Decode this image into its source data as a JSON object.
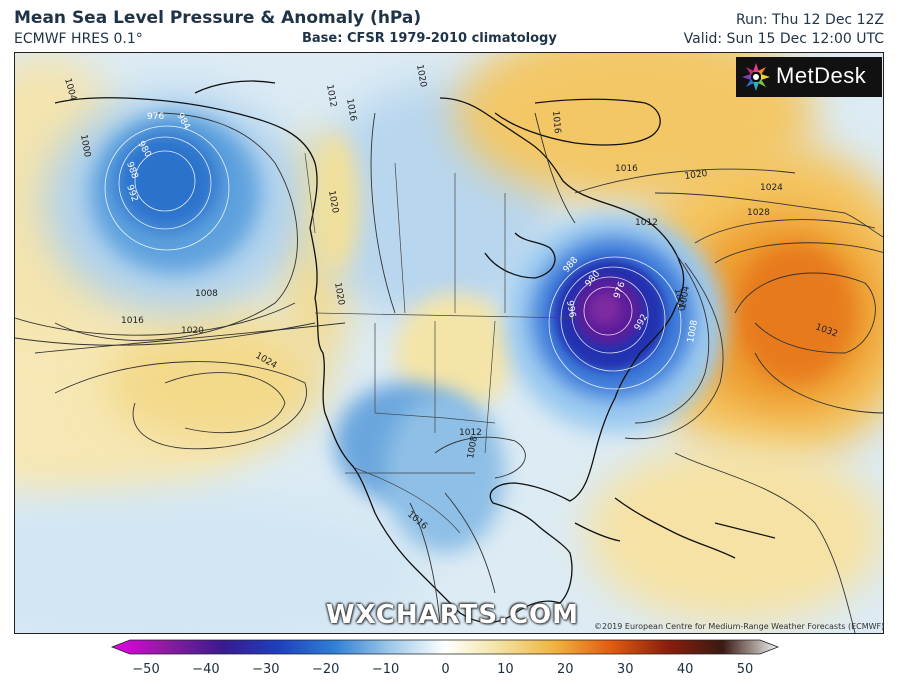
{
  "header": {
    "title": "Mean Sea Level Pressure & Anomaly (hPa)",
    "model": "ECMWF HRES 0.1°",
    "base": "Base: CFSR 1979-2010 climatology",
    "run": "Run: Thu 12 Dec 12Z",
    "valid": "Valid: Sun 15 Dec 12:00 UTC"
  },
  "logo": {
    "text": "MetDesk"
  },
  "watermark": "WXCHARTS.COM",
  "copyright": "©2019 European Centre for Medium-Range Weather Forecasts (ECMWF)",
  "colorbar": {
    "ticks": [
      "−50",
      "−40",
      "−30",
      "−20",
      "−10",
      "0",
      "10",
      "20",
      "30",
      "40",
      "50"
    ],
    "colors": [
      "#e800e8",
      "#8a1d9e",
      "#3a1a90",
      "#1d3fbf",
      "#2f7fd6",
      "#9cc8ea",
      "#ffffff",
      "#f2e2a0",
      "#f0b23c",
      "#e25a10",
      "#8c1e0c",
      "#3a1a12",
      "#f2f2f2"
    ]
  },
  "contour_labels": [
    {
      "id": "l1004-nw",
      "text": "1004"
    },
    {
      "id": "l976",
      "text": "976"
    },
    {
      "id": "l984",
      "text": "984"
    },
    {
      "id": "l980",
      "text": "980"
    },
    {
      "id": "l988",
      "text": "988"
    },
    {
      "id": "l992",
      "text": "992"
    },
    {
      "id": "l1000-w",
      "text": "1000"
    },
    {
      "id": "l1008-gulf",
      "text": "1008"
    },
    {
      "id": "l1016-w",
      "text": "1016"
    },
    {
      "id": "l1020-w",
      "text": "1020"
    },
    {
      "id": "l1024-w",
      "text": "1024"
    },
    {
      "id": "l1012-ak",
      "text": "1012"
    },
    {
      "id": "l1016-ak",
      "text": "1016"
    },
    {
      "id": "l1020-can",
      "text": "1020"
    },
    {
      "id": "l1016-gr",
      "text": "1016"
    },
    {
      "id": "l1016-atl",
      "text": "1016"
    },
    {
      "id": "l1020-atl",
      "text": "1020"
    },
    {
      "id": "l1024-atl",
      "text": "1024"
    },
    {
      "id": "l1028-atl",
      "text": "1028"
    },
    {
      "id": "l1032-atl",
      "text": "1032"
    },
    {
      "id": "l1012-lab",
      "text": "1012"
    },
    {
      "id": "l988-e",
      "text": "988"
    },
    {
      "id": "l980-e",
      "text": "980"
    },
    {
      "id": "l976-e",
      "text": "976"
    },
    {
      "id": "l996-e",
      "text": "996"
    },
    {
      "id": "l992-e",
      "text": "992"
    },
    {
      "id": "l1000-e",
      "text": "1000"
    },
    {
      "id": "l1004-e",
      "text": "1004"
    },
    {
      "id": "l1008-e",
      "text": "1008"
    },
    {
      "id": "l1012-us",
      "text": "1012"
    },
    {
      "id": "l1008-tx",
      "text": "1008"
    },
    {
      "id": "l1016-mx",
      "text": "1016"
    },
    {
      "id": "l1020-bc",
      "text": "1020"
    },
    {
      "id": "l1020-rk",
      "text": "1020"
    }
  ]
}
